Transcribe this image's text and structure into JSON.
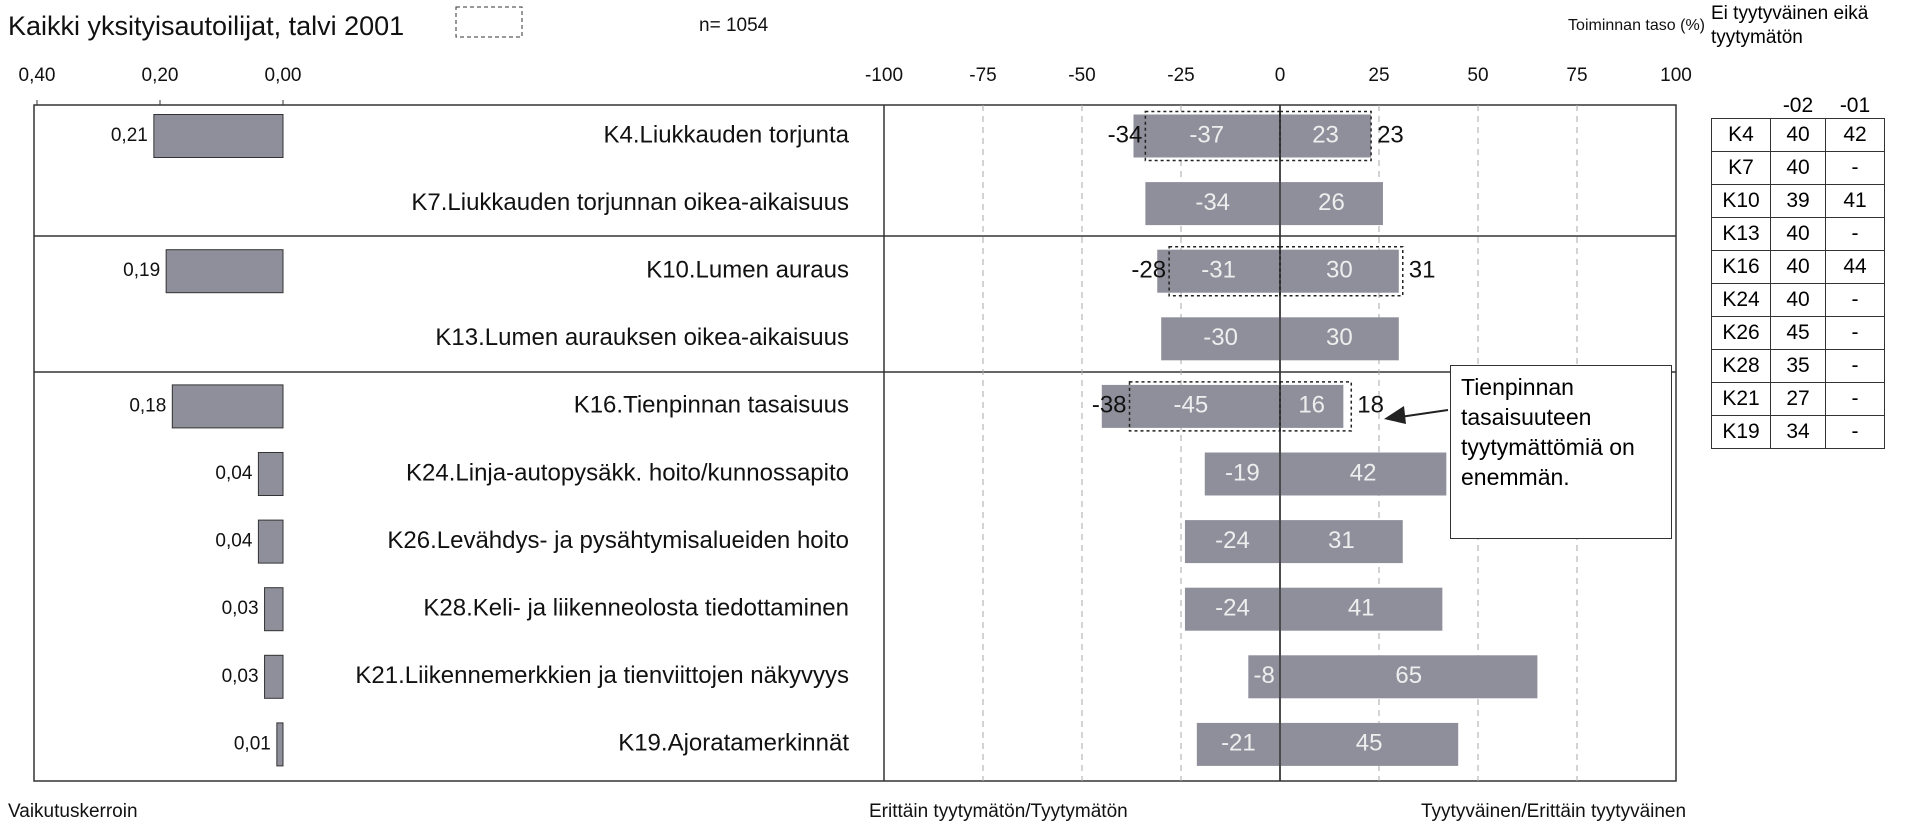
{
  "title": "Kaikki yksityisautoilijat, talvi 2001",
  "n_label": "n= 1054",
  "level_label": "Toiminnan taso (%)",
  "chart_data": [
    {
      "type": "bar",
      "orientation": "horizontal",
      "xlabel": "Vaikutuskerroin",
      "color": "#8f8f9c",
      "values": [
        0.21,
        null,
        0.19,
        null,
        0.18,
        0.04,
        0.04,
        0.03,
        0.03,
        0.01
      ],
      "value_labels": [
        "0,21",
        null,
        "0,19",
        null,
        "0,18",
        "0,04",
        "0,04",
        "0,03",
        "0,03",
        "0,01"
      ],
      "xlim": [
        0.4,
        0
      ],
      "xticks": [
        {
          "value": 0.4,
          "label": "0,40"
        },
        {
          "value": 0.2,
          "label": "0,20"
        },
        {
          "value": 0,
          "label": "0,00"
        }
      ]
    },
    {
      "type": "diverging_bar",
      "orientation": "horizontal",
      "grid": true,
      "categories": [
        "K4.Liukkauden torjunta",
        "K7.Liukkauden torjunnan oikea-aikaisuus",
        "K10.Lumen auraus",
        "K13.Lumen aurauksen oikea-aikaisuus",
        "K16.Tienpinnan tasaisuus",
        "K24.Linja-autopysäkk. hoito/kunnossapito",
        "K26.Levähdys- ja pysähtymisalueiden hoito",
        "K28.Keli- ja liikenneolosta tiedottaminen",
        "K21.Liikennemerkkien ja tienviittojen näkyvyys",
        "K19.Ajoratamerkinnät"
      ],
      "series": [
        {
          "name": "Erittäin tyytymätön/Tyytymätön",
          "color": "#8f8f9c",
          "values": [
            -37,
            -34,
            -31,
            -30,
            -45,
            -19,
            -24,
            -24,
            -8,
            -21
          ],
          "previous": [
            -34,
            null,
            -28,
            null,
            -38,
            null,
            null,
            null,
            null,
            null
          ]
        },
        {
          "name": "Tyytyväinen/Erittäin tyytyväinen",
          "color": "#8f8f9c",
          "values": [
            23,
            26,
            30,
            30,
            16,
            42,
            31,
            41,
            65,
            45
          ],
          "previous": [
            23,
            null,
            31,
            null,
            18,
            null,
            null,
            null,
            null,
            null
          ]
        }
      ],
      "xlim": [
        -100,
        100
      ],
      "xticks": [
        -100,
        -75,
        -50,
        -25,
        0,
        25,
        50,
        75,
        100
      ],
      "annotation": "Tienpinnan tasaisuuteen tyytymättömiä on enemmän."
    }
  ],
  "table": {
    "title": "Ei tyytyväinen eikä tyytymätön",
    "columns": [
      "-02",
      "-01"
    ],
    "rows": [
      [
        "K4",
        40,
        42
      ],
      [
        "K7",
        40,
        "-"
      ],
      [
        "K10",
        39,
        41
      ],
      [
        "K13",
        40,
        "-"
      ],
      [
        "K16",
        40,
        44
      ],
      [
        "K24",
        40,
        "-"
      ],
      [
        "K26",
        45,
        "-"
      ],
      [
        "K28",
        35,
        "-"
      ],
      [
        "K21",
        27,
        "-"
      ],
      [
        "K19",
        34,
        "-"
      ]
    ]
  }
}
